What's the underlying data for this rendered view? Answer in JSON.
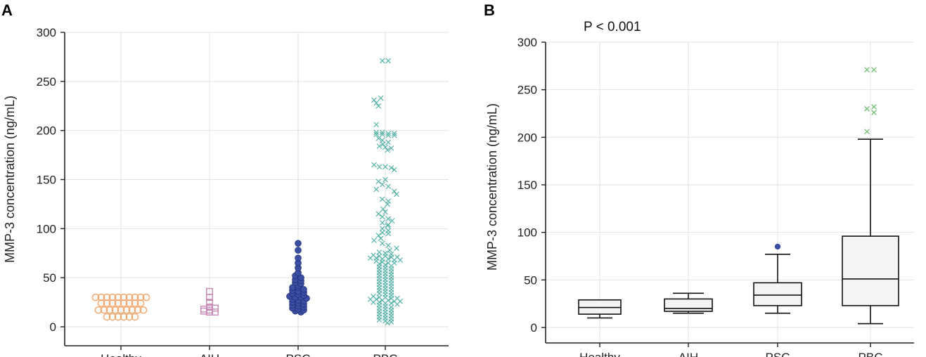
{
  "colors": {
    "healthy": "#f2a66b",
    "aih": "#c987b7",
    "psc_fill": "#3a4fa3",
    "psc_stroke": "#1f2d75",
    "pbc": "#57b3a8",
    "outlier_psc": "#3a4fa3",
    "outlier_pbc": "#6fbf73"
  },
  "chart_data": [
    {
      "panel": "A",
      "type": "scatter",
      "ylabel": "MMP-3 concentration (ng/mL)",
      "ylim": [
        0,
        300
      ],
      "yticks": [
        0,
        50,
        100,
        150,
        200,
        250,
        300
      ],
      "categories": [
        "Healthy",
        "AIH",
        "PSC",
        "PBC"
      ],
      "grid": true,
      "series": [
        {
          "name": "Healthy",
          "marker": "circle-open",
          "values": [
            10,
            10,
            10,
            10,
            10,
            10,
            17,
            17,
            17,
            17,
            17,
            17,
            17,
            17,
            17,
            24,
            24,
            24,
            24,
            24,
            24,
            24,
            24,
            30,
            30,
            30,
            30,
            30,
            30,
            30,
            30,
            30,
            30
          ]
        },
        {
          "name": "AIH",
          "marker": "square-open",
          "values": [
            36,
            30,
            25,
            20,
            18,
            17,
            16,
            15,
            15,
            19
          ]
        },
        {
          "name": "PSC",
          "marker": "circle-filled",
          "values": [
            85,
            78,
            70,
            65,
            60,
            55,
            52,
            50,
            48,
            47,
            45,
            44,
            42,
            40,
            40,
            38,
            37,
            36,
            35,
            34,
            33,
            32,
            31,
            30,
            30,
            29,
            28,
            27,
            26,
            25,
            24,
            23,
            22,
            21,
            20,
            19,
            18,
            17,
            16,
            15
          ]
        },
        {
          "name": "PBC",
          "marker": "x",
          "values": [
            271,
            271,
            233,
            231,
            228,
            225,
            206,
            198,
            198,
            197,
            197,
            196,
            196,
            195,
            195,
            192,
            190,
            188,
            186,
            184,
            183,
            182,
            180,
            165,
            163,
            163,
            162,
            160,
            150,
            148,
            145,
            143,
            140,
            138,
            135,
            130,
            128,
            125,
            120,
            117,
            115,
            112,
            110,
            108,
            106,
            104,
            103,
            100,
            98,
            96,
            95,
            93,
            90,
            88,
            85,
            83,
            80,
            78,
            76,
            75,
            74,
            73,
            72,
            72,
            71,
            71,
            70,
            70,
            69,
            69,
            68,
            68,
            67,
            66,
            65,
            65,
            64,
            63,
            62,
            61,
            60,
            59,
            58,
            57,
            56,
            55,
            54,
            53,
            52,
            51,
            50,
            49,
            48,
            47,
            46,
            45,
            44,
            43,
            42,
            41,
            40,
            39,
            38,
            37,
            36,
            35,
            34,
            33,
            32,
            31,
            30,
            30,
            29,
            29,
            28,
            28,
            27,
            27,
            26,
            26,
            25,
            25,
            24,
            24,
            23,
            22,
            21,
            20,
            19,
            18,
            17,
            16,
            15,
            14,
            13,
            12,
            11,
            10,
            9,
            8,
            7,
            6,
            5,
            4
          ]
        }
      ]
    },
    {
      "panel": "B",
      "type": "box",
      "annotation": "P < 0.001",
      "ylabel": "MMP-3 concentration (ng/mL)",
      "ylim": [
        0,
        300
      ],
      "yticks": [
        0,
        50,
        100,
        150,
        200,
        250,
        300
      ],
      "categories": [
        "Healthy",
        "AIH",
        "PSC",
        "PBC"
      ],
      "grid": true,
      "boxes": [
        {
          "name": "Healthy",
          "whisker_low": 10,
          "q1": 14,
          "median": 21,
          "q3": 29,
          "whisker_high": 29,
          "outliers": []
        },
        {
          "name": "AIH",
          "whisker_low": 15,
          "q1": 17,
          "median": 20,
          "q3": 30,
          "whisker_high": 36,
          "outliers": []
        },
        {
          "name": "PSC",
          "whisker_low": 15,
          "q1": 23,
          "median": 34,
          "q3": 47,
          "whisker_high": 77,
          "outliers": [
            85
          ]
        },
        {
          "name": "PBC",
          "whisker_low": 4,
          "q1": 23,
          "median": 51,
          "q3": 96,
          "whisker_high": 198,
          "outliers": [
            206,
            226,
            230,
            232,
            271,
            271
          ]
        }
      ]
    }
  ]
}
